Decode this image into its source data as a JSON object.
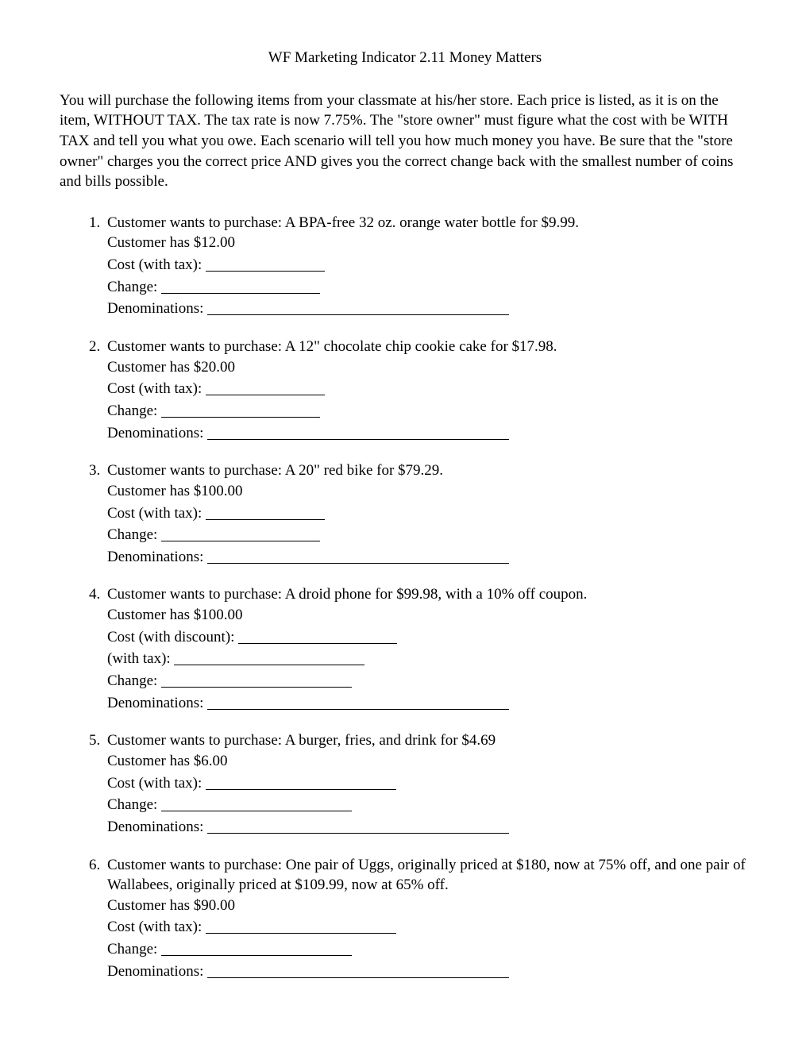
{
  "title": "WF Marketing Indicator 2.11 Money Matters",
  "intro": "You will purchase the following items from your classmate at his/her store.  Each price is listed, as it is on the item, WITHOUT TAX.  The tax rate is now 7.75%.  The \"store owner\" must figure what the cost with be WITH TAX and tell you what you owe.  Each scenario will tell you how much money you have.  Be sure that the \"store owner\" charges you the correct price AND gives you the correct change back with the smallest number of coins and bills possible.",
  "labels": {
    "cost_tax": "Cost (with tax):",
    "cost_discount": "Cost (with discount):",
    "with_tax_only": " (with tax):",
    "change": "Change:",
    "denoms": "Denominations:"
  },
  "blank_widths": {
    "short": 150,
    "med": 200,
    "long": 240,
    "xlong": 380
  },
  "questions": [
    {
      "prompt": "Customer wants to purchase:  A BPA-free 32 oz. orange water bottle for $9.99.",
      "has": "Customer has $12.00",
      "rows": [
        {
          "label_key": "cost_tax",
          "blank": "short"
        },
        {
          "label_key": "change",
          "blank": "med"
        },
        {
          "label_key": "denoms",
          "blank": "xlong"
        }
      ]
    },
    {
      "prompt": "Customer wants to purchase:  A 12\" chocolate chip cookie cake for $17.98.",
      "has": "Customer has $20.00",
      "rows": [
        {
          "label_key": "cost_tax",
          "blank": "short"
        },
        {
          "label_key": "change",
          "blank": "med"
        },
        {
          "label_key": "denoms",
          "blank": "xlong"
        }
      ]
    },
    {
      "prompt": "Customer wants to purchase:  A 20\" red bike for  $79.29.",
      "has": "Customer has $100.00",
      "rows": [
        {
          "label_key": "cost_tax",
          "blank": "short"
        },
        {
          "label_key": "change",
          "blank": "med"
        },
        {
          "label_key": "denoms",
          "blank": "xlong"
        }
      ]
    },
    {
      "prompt": "Customer wants to purchase:  A droid phone for $99.98, with a 10% off coupon.",
      "has": "Customer has $100.00",
      "rows": [
        {
          "label_key": "cost_discount",
          "blank": "med"
        },
        {
          "label_key": "with_tax_only",
          "blank": "long"
        },
        {
          "label_key": "change",
          "blank": "long"
        },
        {
          "label_key": "denoms",
          "blank": "xlong"
        }
      ]
    },
    {
      "prompt": "Customer wants to purchase:  A burger, fries, and drink for $4.69",
      "has": "Customer has $6.00",
      "rows": [
        {
          "label_key": "cost_tax",
          "blank": "long"
        },
        {
          "label_key": "change",
          "blank": "long"
        },
        {
          "label_key": "denoms",
          "blank": "xlong"
        }
      ]
    },
    {
      "prompt": "Customer wants to purchase:  One pair of Uggs, originally priced at $180, now at 75% off, and one pair of Wallabees, originally priced at $109.99, now at 65% off.",
      "has": "Customer has $90.00",
      "rows": [
        {
          "label_key": "cost_tax",
          "blank": "long"
        },
        {
          "label_key": "change",
          "blank": "long"
        },
        {
          "label_key": "denoms",
          "blank": "xlong"
        }
      ]
    }
  ]
}
